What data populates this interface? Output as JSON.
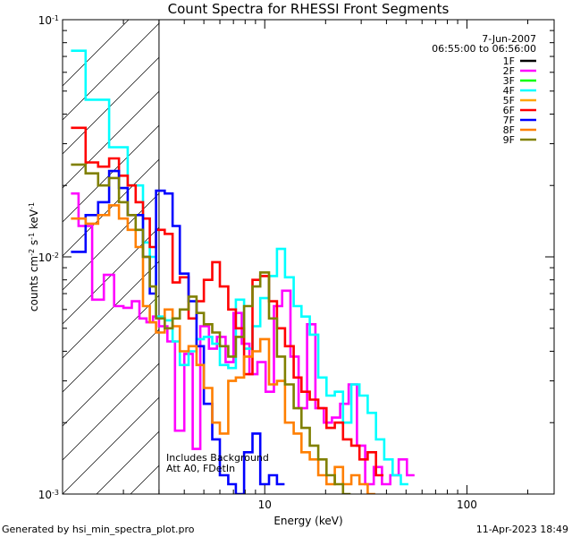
{
  "chart_data": {
    "type": "line",
    "title": "Count Spectra for RHESSI Front Segments",
    "xlabel": "Energy (keV)",
    "ylabel": {
      "base": "counts cm",
      "exp1": "-2",
      "mid": " s",
      "exp2": "-1",
      "tail": " keV",
      "exp3": "-1"
    },
    "x_scale": "log",
    "y_scale": "log",
    "xlim": [
      1,
      270
    ],
    "ylim": [
      0.001,
      0.1
    ],
    "x_ticks": [
      {
        "value": 10,
        "label": "10"
      },
      {
        "value": 100,
        "label": "100"
      }
    ],
    "y_ticks": [
      {
        "value": 0.001,
        "base": "10",
        "exp": "-3"
      },
      {
        "value": 0.01,
        "base": "10",
        "exp": "-2"
      },
      {
        "value": 0.1,
        "base": "10",
        "exp": "-1"
      }
    ],
    "legend_placement": "top-right",
    "info": {
      "date": "7-Jun-2007",
      "time_range": "06:55:00 to 06:56:00"
    },
    "attenuator_boundary": 3.0,
    "annotations": [
      "Includes Background",
      "Att A0, FDetIn"
    ],
    "series": [
      {
        "name": "1F",
        "color": "#000000",
        "points": []
      },
      {
        "name": "2F",
        "color": "#ff00ff",
        "points": [
          [
            1.1,
            0.0185
          ],
          [
            1.2,
            0.0135
          ],
          [
            1.4,
            0.0066
          ],
          [
            1.6,
            0.0084
          ],
          [
            1.8,
            0.0062
          ],
          [
            2.0,
            0.0061
          ],
          [
            2.2,
            0.0065
          ],
          [
            2.4,
            0.0055
          ],
          [
            2.6,
            0.0053
          ],
          [
            2.8,
            0.0056
          ],
          [
            3.0,
            0.0051
          ],
          [
            3.3,
            0.0044
          ],
          [
            3.6,
            0.00185
          ],
          [
            4.0,
            0.0039
          ],
          [
            4.4,
            0.00155
          ],
          [
            4.8,
            0.0051
          ],
          [
            5.3,
            0.0041
          ],
          [
            5.8,
            0.0046
          ],
          [
            6.4,
            0.0036
          ],
          [
            7.0,
            0.0058
          ],
          [
            7.7,
            0.0043
          ],
          [
            8.4,
            0.0032
          ],
          [
            9.2,
            0.0036
          ],
          [
            10.1,
            0.0027
          ],
          [
            11.1,
            0.0062
          ],
          [
            12.2,
            0.0072
          ],
          [
            13.4,
            0.0038
          ],
          [
            14.7,
            0.0023
          ],
          [
            16.2,
            0.0052
          ],
          [
            17.8,
            0.0023
          ],
          [
            19.6,
            0.002
          ],
          [
            21.5,
            0.0021
          ],
          [
            23.6,
            0.0024
          ],
          [
            26.0,
            0.0029
          ],
          [
            28.6,
            0.0016
          ],
          [
            31.4,
            0.0011
          ],
          [
            34.6,
            0.0013
          ],
          [
            38.0,
            0.0011
          ],
          [
            41.8,
            0.0012
          ],
          [
            46.0,
            0.0014
          ],
          [
            50.5,
            0.0012
          ]
        ]
      },
      {
        "name": "3F",
        "color": "#00ff00",
        "points": []
      },
      {
        "name": "4F",
        "color": "#00ffff",
        "points": [
          [
            1.1,
            0.074
          ],
          [
            1.3,
            0.046
          ],
          [
            1.5,
            0.046
          ],
          [
            1.7,
            0.029
          ],
          [
            1.9,
            0.029
          ],
          [
            2.1,
            0.02
          ],
          [
            2.3,
            0.02
          ],
          [
            2.5,
            0.0115
          ],
          [
            2.7,
            0.01
          ],
          [
            2.9,
            0.0056
          ],
          [
            3.2,
            0.0054
          ],
          [
            3.5,
            0.0044
          ],
          [
            3.8,
            0.0035
          ],
          [
            4.2,
            0.004
          ],
          [
            4.6,
            0.0045
          ],
          [
            5.0,
            0.0046
          ],
          [
            5.5,
            0.0043
          ],
          [
            6.0,
            0.0035
          ],
          [
            6.6,
            0.0034
          ],
          [
            7.2,
            0.0066
          ],
          [
            7.9,
            0.0041
          ],
          [
            8.7,
            0.0051
          ],
          [
            9.5,
            0.0067
          ],
          [
            10.5,
            0.0083
          ],
          [
            11.5,
            0.0108
          ],
          [
            12.6,
            0.0082
          ],
          [
            13.9,
            0.0062
          ],
          [
            15.2,
            0.0056
          ],
          [
            16.7,
            0.0047
          ],
          [
            18.4,
            0.0031
          ],
          [
            20.2,
            0.0026
          ],
          [
            22.2,
            0.0027
          ],
          [
            24.4,
            0.002
          ],
          [
            26.8,
            0.0029
          ],
          [
            29.4,
            0.0026
          ],
          [
            32.3,
            0.0022
          ],
          [
            35.5,
            0.0017
          ],
          [
            39.0,
            0.0014
          ],
          [
            42.9,
            0.0012
          ],
          [
            47.1,
            0.0011
          ]
        ]
      },
      {
        "name": "5F",
        "color": "#ffa500",
        "points": []
      },
      {
        "name": "6F",
        "color": "#ff0000",
        "points": [
          [
            1.1,
            0.035
          ],
          [
            1.3,
            0.025
          ],
          [
            1.5,
            0.024
          ],
          [
            1.7,
            0.026
          ],
          [
            1.9,
            0.022
          ],
          [
            2.1,
            0.02
          ],
          [
            2.3,
            0.017
          ],
          [
            2.5,
            0.0145
          ],
          [
            2.7,
            0.011
          ],
          [
            2.9,
            0.013
          ],
          [
            3.2,
            0.0125
          ],
          [
            3.5,
            0.0078
          ],
          [
            3.8,
            0.0082
          ],
          [
            4.2,
            0.0055
          ],
          [
            4.6,
            0.0065
          ],
          [
            5.0,
            0.008
          ],
          [
            5.5,
            0.0095
          ],
          [
            6.0,
            0.0075
          ],
          [
            6.6,
            0.006
          ],
          [
            7.2,
            0.005
          ],
          [
            7.9,
            0.0032
          ],
          [
            8.7,
            0.008
          ],
          [
            9.5,
            0.0083
          ],
          [
            10.5,
            0.0065
          ],
          [
            11.5,
            0.005
          ],
          [
            12.6,
            0.0042
          ],
          [
            13.9,
            0.0031
          ],
          [
            15.2,
            0.0027
          ],
          [
            16.7,
            0.0025
          ],
          [
            18.4,
            0.0023
          ],
          [
            20.2,
            0.0019
          ],
          [
            22.2,
            0.002
          ],
          [
            24.4,
            0.0017
          ],
          [
            26.8,
            0.0016
          ],
          [
            29.4,
            0.0014
          ],
          [
            32.3,
            0.0015
          ],
          [
            35.5,
            0.0012
          ]
        ]
      },
      {
        "name": "7F",
        "color": "#0000ff",
        "points": [
          [
            1.1,
            0.0105
          ],
          [
            1.3,
            0.015
          ],
          [
            1.5,
            0.017
          ],
          [
            1.7,
            0.023
          ],
          [
            1.9,
            0.0195
          ],
          [
            2.1,
            0.015
          ],
          [
            2.3,
            0.015
          ],
          [
            2.5,
            0.01
          ],
          [
            2.7,
            0.007
          ],
          [
            2.9,
            0.019
          ],
          [
            3.2,
            0.0185
          ],
          [
            3.5,
            0.0135
          ],
          [
            3.8,
            0.0085
          ],
          [
            4.2,
            0.0065
          ],
          [
            4.6,
            0.0042
          ],
          [
            5.0,
            0.0024
          ],
          [
            5.5,
            0.0017
          ],
          [
            6.0,
            0.0012
          ],
          [
            6.6,
            0.0011
          ],
          [
            7.2,
            0.001
          ],
          [
            7.9,
            0.0015
          ],
          [
            8.7,
            0.0018
          ],
          [
            9.5,
            0.0011
          ],
          [
            10.5,
            0.0012
          ],
          [
            11.5,
            0.0011
          ]
        ]
      },
      {
        "name": "8F",
        "color": "#ff7f00",
        "points": [
          [
            1.1,
            0.0145
          ],
          [
            1.3,
            0.0138
          ],
          [
            1.5,
            0.015
          ],
          [
            1.7,
            0.0165
          ],
          [
            1.9,
            0.0145
          ],
          [
            2.1,
            0.013
          ],
          [
            2.3,
            0.011
          ],
          [
            2.5,
            0.0062
          ],
          [
            2.7,
            0.0053
          ],
          [
            2.9,
            0.0048
          ],
          [
            3.2,
            0.006
          ],
          [
            3.5,
            0.0051
          ],
          [
            3.8,
            0.004
          ],
          [
            4.2,
            0.0042
          ],
          [
            4.6,
            0.0035
          ],
          [
            5.0,
            0.0028
          ],
          [
            5.5,
            0.002
          ],
          [
            6.0,
            0.0018
          ],
          [
            6.6,
            0.003
          ],
          [
            7.2,
            0.0031
          ],
          [
            7.9,
            0.0038
          ],
          [
            8.7,
            0.004
          ],
          [
            9.5,
            0.0045
          ],
          [
            10.5,
            0.0029
          ],
          [
            11.5,
            0.003
          ],
          [
            12.6,
            0.002
          ],
          [
            13.9,
            0.0018
          ],
          [
            15.2,
            0.0015
          ],
          [
            16.7,
            0.0014
          ],
          [
            18.4,
            0.0012
          ],
          [
            20.2,
            0.0011
          ],
          [
            22.2,
            0.0013
          ],
          [
            24.4,
            0.0011
          ],
          [
            26.8,
            0.0012
          ],
          [
            29.4,
            0.0011
          ],
          [
            32.3,
            0.001
          ]
        ]
      },
      {
        "name": "9F",
        "color": "#808000",
        "points": [
          [
            1.1,
            0.0245
          ],
          [
            1.3,
            0.0225
          ],
          [
            1.5,
            0.02
          ],
          [
            1.7,
            0.0215
          ],
          [
            1.9,
            0.017
          ],
          [
            2.1,
            0.015
          ],
          [
            2.3,
            0.013
          ],
          [
            2.5,
            0.01
          ],
          [
            2.7,
            0.0075
          ],
          [
            2.9,
            0.0055
          ],
          [
            3.2,
            0.005
          ],
          [
            3.5,
            0.0055
          ],
          [
            3.8,
            0.006
          ],
          [
            4.2,
            0.0068
          ],
          [
            4.6,
            0.0058
          ],
          [
            5.0,
            0.0052
          ],
          [
            5.5,
            0.0048
          ],
          [
            6.0,
            0.0042
          ],
          [
            6.6,
            0.0038
          ],
          [
            7.2,
            0.0046
          ],
          [
            7.9,
            0.0062
          ],
          [
            8.7,
            0.0075
          ],
          [
            9.5,
            0.0086
          ],
          [
            10.5,
            0.0055
          ],
          [
            11.5,
            0.0038
          ],
          [
            12.6,
            0.0029
          ],
          [
            13.9,
            0.0023
          ],
          [
            15.2,
            0.0019
          ],
          [
            16.7,
            0.0016
          ],
          [
            18.4,
            0.0014
          ],
          [
            20.2,
            0.0012
          ],
          [
            22.2,
            0.0011
          ],
          [
            24.4,
            0.001
          ]
        ]
      }
    ]
  },
  "footer": {
    "generated_by": "Generated by hsi_min_spectra_plot.pro",
    "timestamp": "11-Apr-2023 18:49"
  }
}
